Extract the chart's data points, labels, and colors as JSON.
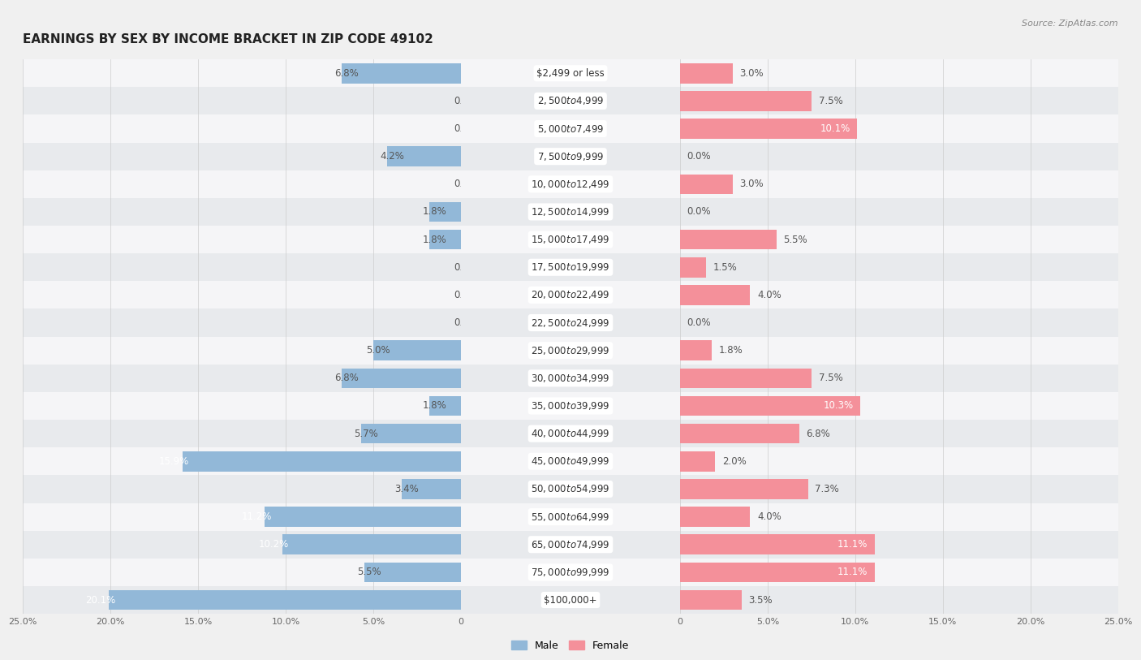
{
  "title": "EARNINGS BY SEX BY INCOME BRACKET IN ZIP CODE 49102",
  "source": "Source: ZipAtlas.com",
  "categories": [
    "$2,499 or less",
    "$2,500 to $4,999",
    "$5,000 to $7,499",
    "$7,500 to $9,999",
    "$10,000 to $12,499",
    "$12,500 to $14,999",
    "$15,000 to $17,499",
    "$17,500 to $19,999",
    "$20,000 to $22,499",
    "$22,500 to $24,999",
    "$25,000 to $29,999",
    "$30,000 to $34,999",
    "$35,000 to $39,999",
    "$40,000 to $44,999",
    "$45,000 to $49,999",
    "$50,000 to $54,999",
    "$55,000 to $64,999",
    "$65,000 to $74,999",
    "$75,000 to $99,999",
    "$100,000+"
  ],
  "male_values": [
    6.8,
    0.0,
    0.0,
    4.2,
    0.0,
    1.8,
    1.8,
    0.0,
    0.0,
    0.0,
    5.0,
    6.8,
    1.8,
    5.7,
    15.9,
    3.4,
    11.2,
    10.2,
    5.5,
    20.1
  ],
  "female_values": [
    3.0,
    7.5,
    10.1,
    0.0,
    3.0,
    0.0,
    5.5,
    1.5,
    4.0,
    0.0,
    1.8,
    7.5,
    10.3,
    6.8,
    2.0,
    7.3,
    4.0,
    11.1,
    11.1,
    3.5
  ],
  "male_color": "#92b8d8",
  "female_color": "#f4909a",
  "row_color_odd": "#e8eaed",
  "row_color_even": "#f5f5f7",
  "bar_bg_color": "#ffffff",
  "xlim": 25.0,
  "legend_male": "Male",
  "legend_female": "Female",
  "title_fontsize": 11,
  "label_fontsize": 8.5,
  "category_fontsize": 8.5,
  "inside_label_threshold": 10.0
}
